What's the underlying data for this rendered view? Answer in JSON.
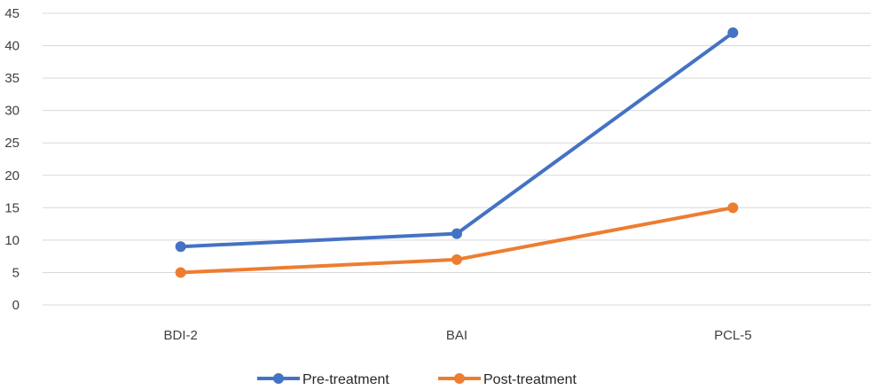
{
  "chart_data": {
    "type": "line",
    "categories": [
      "BDI-2",
      "BAI",
      "PCL-5"
    ],
    "series": [
      {
        "name": "Pre-treatment",
        "values": [
          9,
          11,
          42
        ],
        "color": "#4472C4"
      },
      {
        "name": "Post-treatment",
        "values": [
          5,
          7,
          15
        ],
        "color": "#ED7D31"
      }
    ],
    "ylim": [
      0,
      45
    ],
    "yticks": [
      0,
      5,
      10,
      15,
      20,
      25,
      30,
      35,
      40,
      45
    ],
    "grid": true,
    "legend_position": "bottom",
    "gridline_color": "#D9D9D9"
  }
}
